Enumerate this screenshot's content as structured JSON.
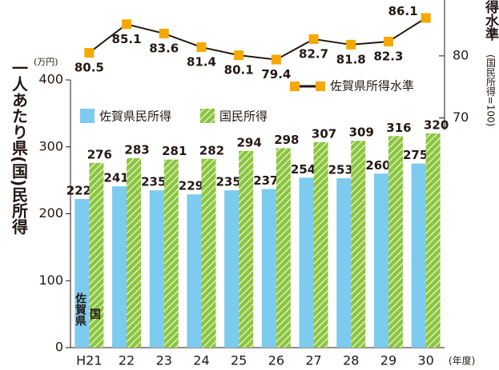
{
  "chart_data": {
    "type": "bar",
    "y_label": "一人あたり県(国)民所得",
    "y_unit": "(万円)",
    "y2_label": "得水準",
    "y2_note": "(国民所得=100)",
    "x_unit": "(年度)",
    "annotations": [
      "佐賀県",
      "国"
    ],
    "categories": [
      "H21",
      "22",
      "23",
      "24",
      "25",
      "26",
      "27",
      "28",
      "29",
      "30"
    ],
    "series": [
      {
        "name": "佐賀県民所得",
        "type": "bar",
        "color": "#7dcbef",
        "values": [
          222,
          241,
          235,
          229,
          235,
          237,
          254,
          253,
          260,
          275
        ]
      },
      {
        "name": "国民所得",
        "type": "bar",
        "color": "#8cc63f",
        "pattern": "hatch",
        "values": [
          276,
          283,
          281,
          282,
          294,
          298,
          307,
          309,
          316,
          320
        ]
      },
      {
        "name": "佐賀県所得水準",
        "type": "line",
        "axis": "y2",
        "color": "#f5a800",
        "line_color": "#231815",
        "values": [
          80.5,
          85.1,
          83.6,
          81.4,
          80.1,
          79.4,
          82.7,
          81.8,
          82.3,
          86.1
        ]
      }
    ],
    "ylim": [
      0,
      400
    ],
    "yticks": [
      0,
      100,
      200,
      300,
      400
    ],
    "y2lim": [
      33,
      89
    ],
    "y2ticks": [
      70,
      80
    ]
  }
}
